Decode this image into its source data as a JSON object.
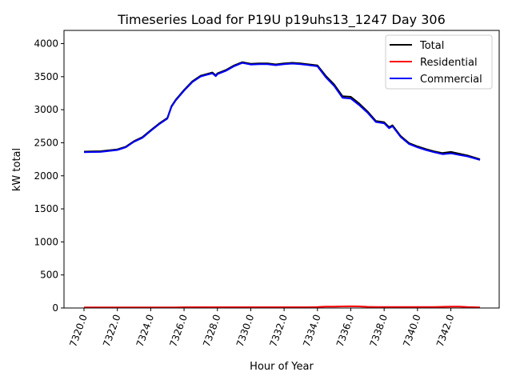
{
  "chart_data": {
    "type": "line",
    "title": "Timeseries Load for P19U p19uhs13_1247  Day 306",
    "xlabel": "Hour of Year",
    "ylabel": "kW total",
    "xlim": [
      7318.8,
      7344.9
    ],
    "ylim": [
      0,
      4200
    ],
    "xticks": [
      7320,
      7322,
      7324,
      7326,
      7328,
      7330,
      7332,
      7334,
      7336,
      7338,
      7340,
      7342
    ],
    "xtick_labels": [
      "7320.0",
      "7322.0",
      "7324.0",
      "7326.0",
      "7328.0",
      "7330.0",
      "7332.0",
      "7334.0",
      "7336.0",
      "7338.0",
      "7340.0",
      "7342.0"
    ],
    "yticks": [
      0,
      500,
      1000,
      1500,
      2000,
      2500,
      3000,
      3500,
      4000
    ],
    "ytick_labels": [
      "0",
      "500",
      "1000",
      "1500",
      "2000",
      "2500",
      "3000",
      "3500",
      "4000"
    ],
    "legend_position": "top-right",
    "x": [
      7320,
      7321,
      7322,
      7322.5,
      7323,
      7323.5,
      7324,
      7324.5,
      7325,
      7325.25,
      7325.5,
      7326,
      7326.5,
      7327,
      7327.7,
      7327.9,
      7328,
      7328.5,
      7329,
      7329.5,
      7330,
      7330.5,
      7331,
      7331.5,
      7332,
      7332.5,
      7333,
      7333.5,
      7334,
      7334.5,
      7335,
      7335.5,
      7336,
      7336.5,
      7337,
      7337.5,
      7338,
      7338.3,
      7338.5,
      7339,
      7339.5,
      7340,
      7340.5,
      7341,
      7341.5,
      7342,
      7342.5,
      7343,
      7343.75
    ],
    "series": [
      {
        "name": "Total",
        "color": "#000000",
        "values": [
          2366,
          2372,
          2400,
          2440,
          2525,
          2585,
          2690,
          2790,
          2875,
          3055,
          3150,
          3300,
          3430,
          3515,
          3563,
          3520,
          3550,
          3600,
          3670,
          3720,
          3695,
          3700,
          3700,
          3685,
          3700,
          3710,
          3700,
          3685,
          3670,
          3512,
          3382,
          3205,
          3195,
          3095,
          2975,
          2830,
          2810,
          2735,
          2765,
          2600,
          2495,
          2445,
          2405,
          2370,
          2345,
          2362,
          2335,
          2308,
          2250
        ]
      },
      {
        "name": "Residential",
        "color": "#ff0000",
        "values": [
          10,
          10,
          10,
          10,
          10,
          10,
          10,
          10,
          10,
          10,
          10,
          12,
          12,
          12,
          12,
          12,
          12,
          12,
          12,
          12,
          12,
          12,
          12,
          12,
          12,
          12,
          12,
          12,
          14,
          20,
          22,
          24,
          26,
          24,
          18,
          16,
          15,
          15,
          15,
          15,
          15,
          15,
          14,
          14,
          18,
          22,
          20,
          14,
          10
        ]
      },
      {
        "name": "Commercial",
        "color": "#0000ff",
        "values": [
          2356,
          2362,
          2390,
          2430,
          2515,
          2575,
          2680,
          2780,
          2865,
          3045,
          3140,
          3288,
          3418,
          3503,
          3551,
          3508,
          3538,
          3588,
          3658,
          3708,
          3683,
          3688,
          3688,
          3673,
          3688,
          3698,
          3688,
          3673,
          3656,
          3492,
          3360,
          3181,
          3169,
          3071,
          2957,
          2814,
          2795,
          2720,
          2750,
          2585,
          2480,
          2430,
          2391,
          2356,
          2327,
          2340,
          2315,
          2294,
          2240
        ]
      }
    ]
  }
}
